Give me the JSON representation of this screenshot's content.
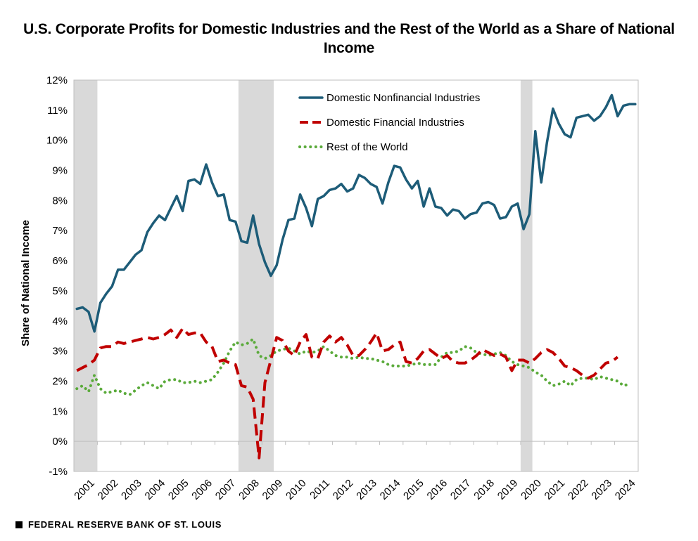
{
  "footer": {
    "source": "FEDERAL RESERVE BANK OF ST. LOUIS"
  },
  "chart_data": {
    "type": "line",
    "title": "U.S. Corporate Profits for Domestic Industries and the Rest of the World as a Share of National Income",
    "xlabel": "",
    "ylabel": "Share of National Income",
    "ylim": [
      -1,
      12
    ],
    "y_ticks": [
      "-1%",
      "0%",
      "1%",
      "2%",
      "3%",
      "4%",
      "5%",
      "6%",
      "7%",
      "8%",
      "9%",
      "10%",
      "11%",
      "12%"
    ],
    "x_ticks": [
      "2001",
      "2002",
      "2003",
      "2004",
      "2005",
      "2006",
      "2007",
      "2008",
      "2009",
      "2010",
      "2011",
      "2012",
      "2013",
      "2014",
      "2015",
      "2016",
      "2017",
      "2018",
      "2019",
      "2020",
      "2021",
      "2022",
      "2023",
      "2024"
    ],
    "x_start": "2001Q1",
    "x_frequency": "quarterly",
    "recessions": [
      {
        "start": "2001Q1",
        "end": "2001Q4"
      },
      {
        "start": "2008Q1",
        "end": "2009Q2"
      },
      {
        "start": "2020Q1",
        "end": "2020Q2"
      }
    ],
    "grid": false,
    "legend": "top-center",
    "series": [
      {
        "name": "Domestic Nonfinancial Industries",
        "color": "#1d5c78",
        "style": "solid",
        "values": [
          4.4,
          4.45,
          4.3,
          3.65,
          4.6,
          4.9,
          5.15,
          5.7,
          5.7,
          5.95,
          6.2,
          6.35,
          6.95,
          7.25,
          7.5,
          7.35,
          7.75,
          8.15,
          7.65,
          8.65,
          8.7,
          8.55,
          9.2,
          8.6,
          8.15,
          8.2,
          7.35,
          7.3,
          6.65,
          6.6,
          7.5,
          6.55,
          5.95,
          5.5,
          5.85,
          6.7,
          7.35,
          7.4,
          8.2,
          7.75,
          7.15,
          8.05,
          8.15,
          8.35,
          8.4,
          8.55,
          8.3,
          8.4,
          8.85,
          8.75,
          8.55,
          8.45,
          7.9,
          8.6,
          9.15,
          9.1,
          8.7,
          8.4,
          8.65,
          7.8,
          8.4,
          7.8,
          7.75,
          7.5,
          7.7,
          7.65,
          7.4,
          7.55,
          7.6,
          7.9,
          7.95,
          7.85,
          7.4,
          7.45,
          7.8,
          7.9,
          7.05,
          7.55,
          10.3,
          8.6,
          9.95,
          11.05,
          10.55,
          10.2,
          10.1,
          10.75,
          10.8,
          10.85,
          10.65,
          10.8,
          11.1,
          11.5,
          10.8,
          11.15,
          11.2,
          11.2
        ]
      },
      {
        "name": "Domestic Financial Industries",
        "color": "#c00000",
        "style": "dashed",
        "values": [
          2.35,
          2.45,
          2.55,
          2.7,
          3.1,
          3.15,
          3.15,
          3.3,
          3.25,
          3.3,
          3.35,
          3.4,
          3.45,
          3.4,
          3.45,
          3.55,
          3.7,
          3.45,
          3.75,
          3.55,
          3.6,
          3.6,
          3.3,
          3.15,
          2.65,
          2.7,
          2.6,
          2.55,
          1.85,
          1.8,
          1.4,
          -0.55,
          1.95,
          2.7,
          3.45,
          3.35,
          3.0,
          2.85,
          3.3,
          3.55,
          2.8,
          2.75,
          3.3,
          3.5,
          3.3,
          3.45,
          3.2,
          2.85,
          2.85,
          3.05,
          3.3,
          3.6,
          3.0,
          3.05,
          3.2,
          3.3,
          2.65,
          2.6,
          2.75,
          3.0,
          3.05,
          2.9,
          2.75,
          2.85,
          2.65,
          2.6,
          2.6,
          2.7,
          2.85,
          3.05,
          2.95,
          2.85,
          2.9,
          2.8,
          2.35,
          2.7,
          2.7,
          2.6,
          2.75,
          2.95,
          3.05,
          2.95,
          2.75,
          2.5,
          2.45,
          2.35,
          2.2,
          2.1,
          2.2,
          2.4,
          2.6,
          2.65,
          2.8
        ]
      },
      {
        "name": "Rest of the World",
        "color": "#5aaa3a",
        "style": "dotted",
        "values": [
          1.75,
          1.85,
          1.65,
          2.2,
          1.75,
          1.6,
          1.65,
          1.7,
          1.6,
          1.55,
          1.7,
          1.85,
          1.95,
          1.85,
          1.75,
          2.0,
          2.05,
          2.05,
          1.95,
          1.95,
          2.0,
          1.95,
          2.0,
          2.05,
          2.3,
          2.6,
          3.0,
          3.3,
          3.2,
          3.25,
          3.4,
          2.85,
          2.75,
          2.85,
          3.0,
          3.05,
          3.1,
          3.0,
          2.9,
          3.0,
          2.95,
          3.0,
          3.15,
          3.0,
          2.85,
          2.8,
          2.8,
          2.75,
          2.8,
          2.75,
          2.75,
          2.7,
          2.65,
          2.55,
          2.5,
          2.5,
          2.5,
          2.55,
          2.6,
          2.55,
          2.55,
          2.55,
          2.8,
          2.95,
          2.95,
          3.0,
          3.15,
          3.1,
          2.95,
          2.9,
          2.85,
          2.9,
          2.95,
          2.85,
          2.65,
          2.55,
          2.5,
          2.45,
          2.3,
          2.2,
          2.0,
          1.85,
          1.9,
          2.0,
          1.85,
          2.05,
          2.1,
          2.1,
          2.05,
          2.15,
          2.1,
          2.05,
          2.0,
          1.85,
          1.9
        ]
      }
    ]
  }
}
